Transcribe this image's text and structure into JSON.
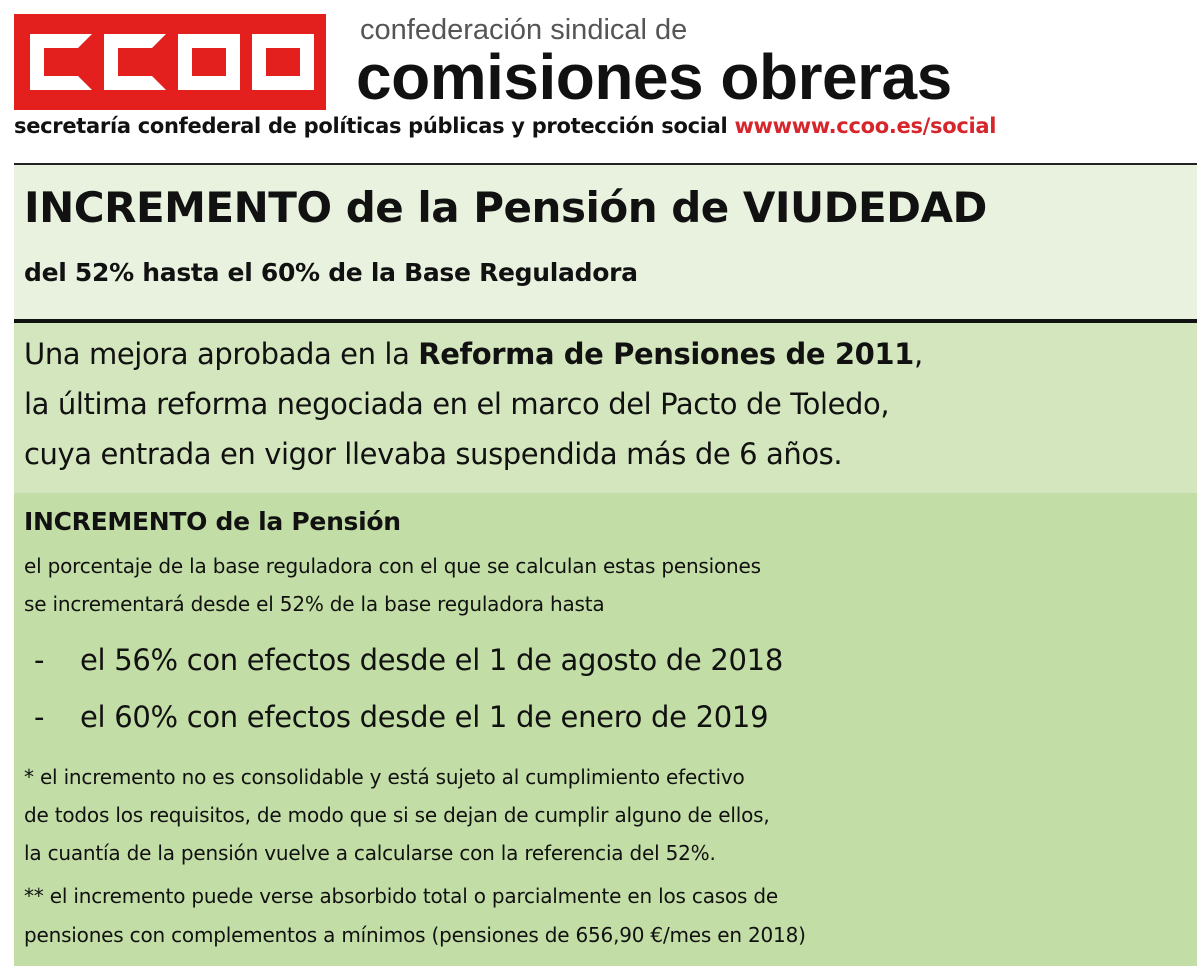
{
  "header": {
    "logo_text": "CCOO",
    "org_top": "confederación sindical de",
    "org_name": "comisiones obreras",
    "secretaria": "secretaría confederal de políticas públicas y protección social",
    "website": "wwwww.ccoo.es/social",
    "logo_color": "#e4201e",
    "website_color": "#d6262c"
  },
  "title_box": {
    "title": "INCREMENTO de la Pensión de VIUDEDAD",
    "subtitle": "del 52% hasta el 60% de la Base Reguladora"
  },
  "intro": {
    "line1_pre": "Una mejora aprobada en la ",
    "line1_bold": "Reforma de Pensiones de 2011",
    "line1_post": ",",
    "line2": "la última reforma negociada en el marco del Pacto de Toledo,",
    "line3": "cuya entrada en vigor llevaba suspendida más de 6 años."
  },
  "details": {
    "heading": "INCREMENTO de la Pensión",
    "text1": "el porcentaje de la base reguladora con el que se calculan estas pensiones",
    "text2": "se incrementará desde el 52% de la base reguladora hasta",
    "bullets": [
      {
        "dash": "-",
        "text": "el 56% con efectos desde el 1 de agosto de 2018"
      },
      {
        "dash": "-",
        "text": "el 60% con efectos desde el 1 de enero de 2019"
      }
    ],
    "note1": [
      "* el incremento no es consolidable  y está sujeto al cumplimiento efectivo",
      "de todos los requisitos, de modo que si se dejan de cumplir alguno de ellos,",
      "la cuantía de la pensión vuelve a calcularse con la referencia del 52%."
    ],
    "note2": [
      "** el incremento puede verse absorbido total o parcialmente en los casos de",
      "pensiones con complementos a mínimos (pensiones de 656,90 €/mes en 2018)"
    ]
  }
}
